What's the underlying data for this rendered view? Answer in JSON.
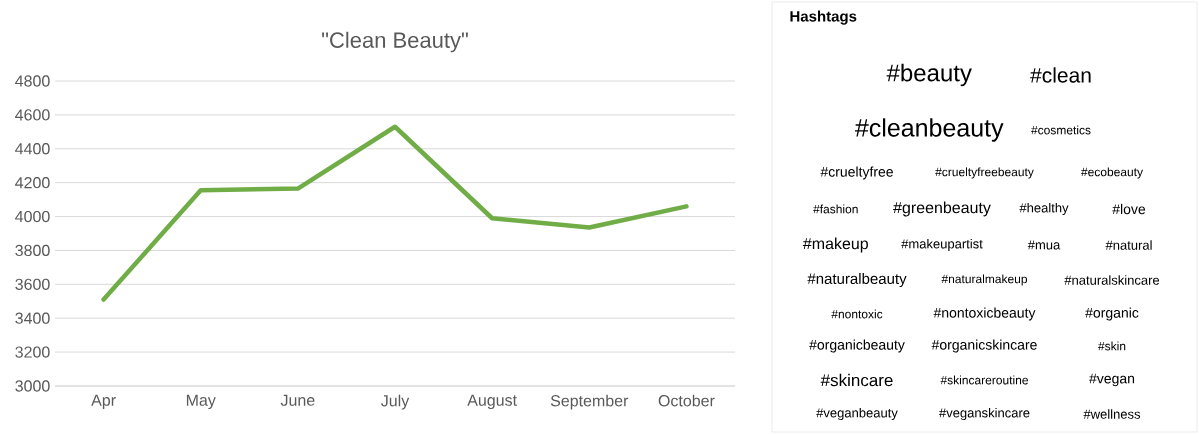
{
  "chart_data": [
    {
      "type": "line",
      "title": "\"Clean Beauty\"",
      "categories": [
        "Apr",
        "May",
        "June",
        "July",
        "August",
        "September",
        "October"
      ],
      "series": [
        {
          "color": "#70ad47",
          "values": [
            3510,
            4155,
            4165,
            4530,
            3990,
            3935,
            4060
          ]
        }
      ],
      "ylim": [
        3000,
        4800
      ],
      "yticks": [
        3000,
        3200,
        3400,
        3600,
        3800,
        4000,
        4200,
        4400,
        4600,
        4800
      ],
      "grid": "y"
    },
    {
      "type": "other",
      "title": "Hashtags",
      "annotations": [
        "#beauty",
        "#clean",
        "#cleanbeauty",
        "#cosmetics",
        "#crueltyfree",
        "#crueltyfreebeauty",
        "#ecobeauty",
        "#fashion",
        "#greenbeauty",
        "#healthy",
        "#love",
        "#makeup",
        "#makeupartist",
        "#mua",
        "#natural",
        "#naturalbeauty",
        "#naturalmakeup",
        "#naturalskincare",
        "#nontoxic",
        "#nontoxicbeauty",
        "#organic",
        "#organicbeauty",
        "#organicskincare",
        "#skin",
        "#skincare",
        "#skincareroutine",
        "#vegan",
        "#veganbeauty",
        "#veganskincare",
        "#wellness"
      ]
    }
  ]
}
